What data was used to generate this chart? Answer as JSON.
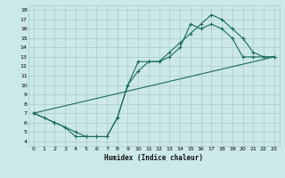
{
  "xlabel": "Humidex (Indice chaleur)",
  "bg_color": "#cce8e8",
  "grid_color": "#aacccc",
  "line_color": "#1a6b5a",
  "xlim": [
    -0.5,
    23.5
  ],
  "ylim": [
    3.5,
    18.5
  ],
  "xticks": [
    0,
    1,
    2,
    3,
    4,
    5,
    6,
    7,
    8,
    9,
    10,
    11,
    12,
    13,
    14,
    15,
    16,
    17,
    18,
    19,
    20,
    21,
    22,
    23
  ],
  "yticks": [
    4,
    5,
    6,
    7,
    8,
    9,
    10,
    11,
    12,
    13,
    14,
    15,
    16,
    17,
    18
  ],
  "line1_x": [
    0,
    1,
    2,
    3,
    4,
    5,
    6,
    7,
    8,
    9,
    10,
    11,
    12,
    13,
    14,
    15,
    16,
    17,
    18,
    19,
    20,
    21,
    22,
    23
  ],
  "line1_y": [
    7,
    6.5,
    6,
    5.5,
    4.5,
    4.5,
    4.5,
    4.5,
    6.5,
    10,
    12.5,
    12.5,
    12.5,
    13,
    14,
    16.5,
    16,
    16.5,
    16,
    15,
    13,
    13,
    13,
    13
  ],
  "line2_x": [
    0,
    2,
    3,
    4,
    5,
    6,
    7,
    8,
    9,
    10,
    11,
    12,
    13,
    14,
    15,
    16,
    17,
    18,
    19,
    20,
    21,
    22,
    23
  ],
  "line2_y": [
    7,
    6,
    5.5,
    5,
    4.5,
    4.5,
    4.5,
    6.5,
    10,
    11.5,
    12.5,
    12.5,
    13.5,
    14.5,
    15.5,
    16.5,
    17.5,
    17,
    16,
    15,
    13.5,
    13,
    13
  ],
  "line3_x": [
    0,
    23
  ],
  "line3_y": [
    7,
    13
  ]
}
